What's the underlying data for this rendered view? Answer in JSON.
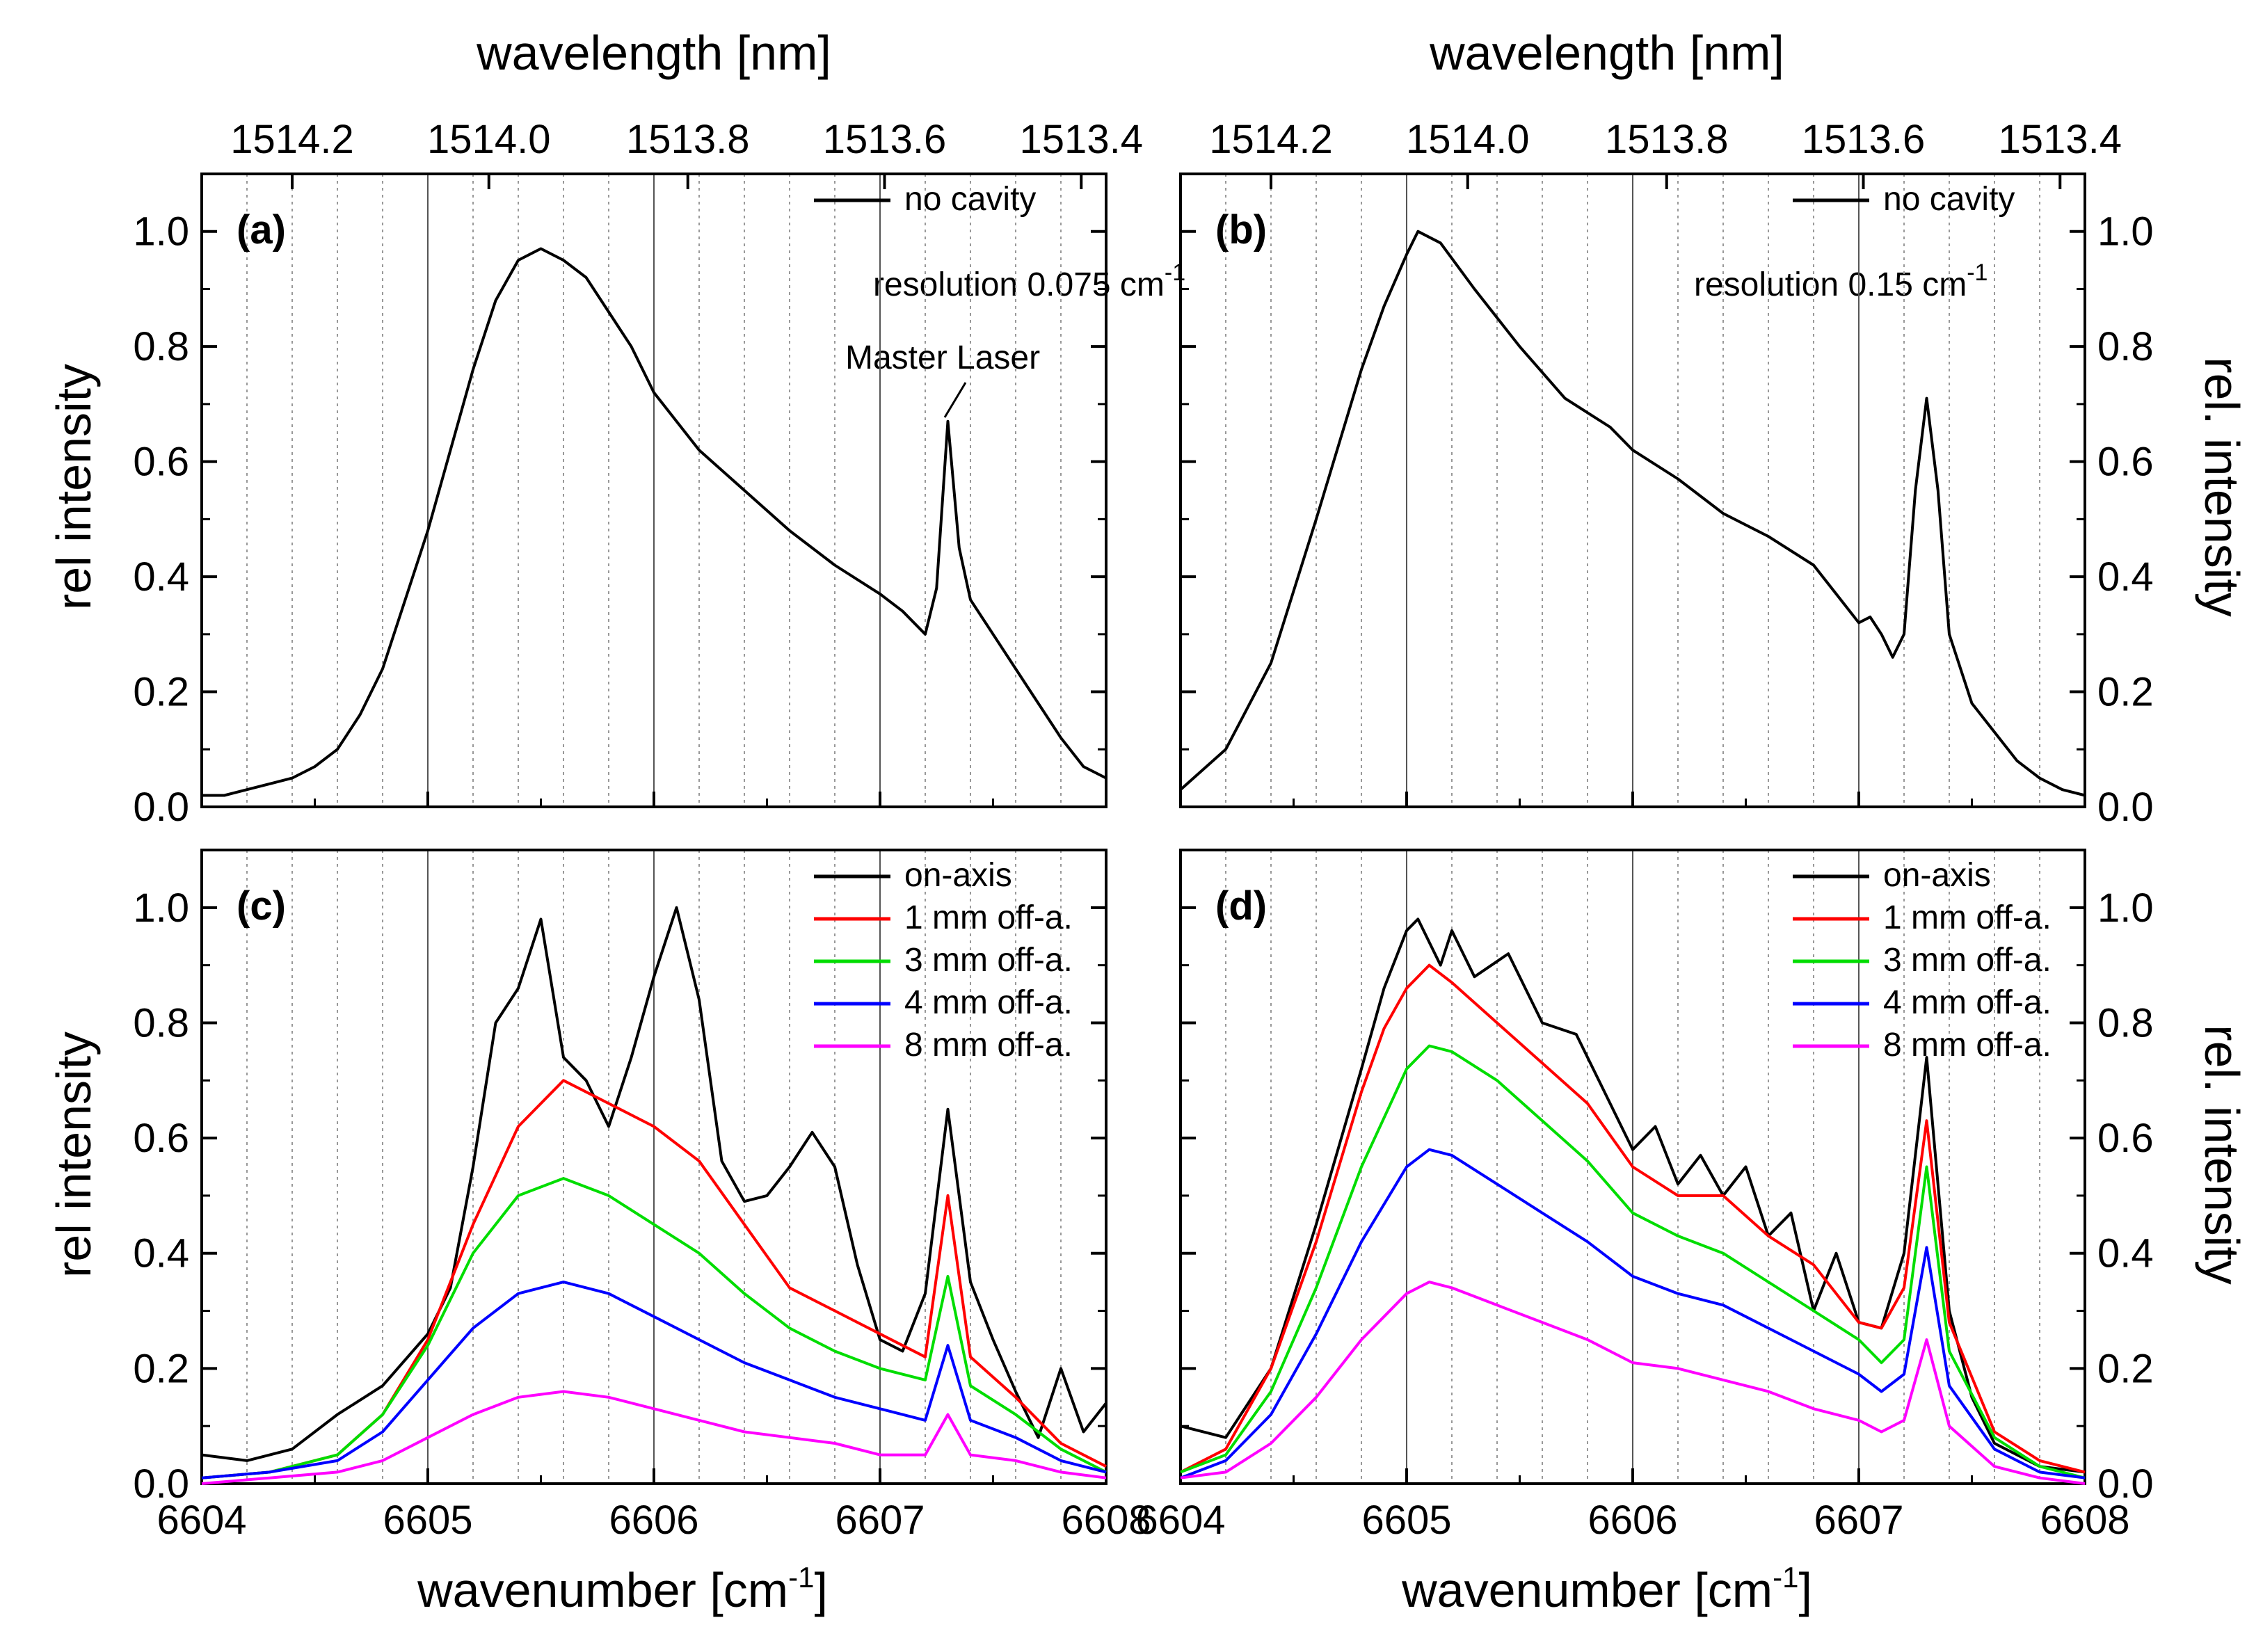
{
  "figure": {
    "top_axis_title": "wavelength [nm]",
    "bottom_axis_title_main": "wavenumber [cm",
    "bottom_axis_title_sup": "-1",
    "bottom_axis_title_end": "]",
    "left_ylabel_top": "rel intensity",
    "left_ylabel_bottom": "rel intensity",
    "right_ylabel_top": "rel. intensity",
    "right_ylabel_bottom": "rel. intensity",
    "resolution_a_main": "resolution 0.075 cm",
    "resolution_a_sup": "-1",
    "resolution_b_main": "resolution 0.15 cm",
    "resolution_b_sup": "-1",
    "annotation_master_laser": "Master Laser"
  },
  "colors": {
    "on-axis": "#000000",
    "1 mm off-a.": "#ff0000",
    "3 mm off-a.": "#00dd00",
    "4 mm off-a.": "#0000ff",
    "8 mm off-a.": "#ff00ff",
    "no cavity": "#000000"
  },
  "chart_data": [
    {
      "panel": "(a)",
      "type": "line",
      "xlabel": "wavenumber [cm-1]",
      "ylabel": "rel intensity",
      "top_xlabel": "wavelength [nm]",
      "top_ticks": [
        "1514.2",
        "1514.0",
        "1513.8",
        "1513.6",
        "1513.4"
      ],
      "top_tick_positions_cm": [
        6604.4,
        6605.27,
        6606.15,
        6607.02,
        6607.89
      ],
      "xlim": [
        6604,
        6608
      ],
      "ylim": [
        0,
        1.1
      ],
      "xticks": [
        6604,
        6605,
        6606,
        6607,
        6608
      ],
      "yticks": [
        "0.0",
        "0.2",
        "0.4",
        "0.6",
        "0.8",
        "1.0"
      ],
      "legend": [
        "no cavity"
      ],
      "legend_position": "top-right",
      "annotation": "resolution 0.075 cm-1",
      "series": [
        {
          "name": "no cavity",
          "x": [
            6604.0,
            6604.1,
            6604.2,
            6604.3,
            6604.4,
            6604.5,
            6604.6,
            6604.7,
            6604.8,
            6604.9,
            6605.0,
            6605.1,
            6605.2,
            6605.3,
            6605.4,
            6605.5,
            6605.6,
            6605.7,
            6605.8,
            6605.9,
            6606.0,
            6606.2,
            6606.4,
            6606.6,
            6606.8,
            6607.0,
            6607.1,
            6607.2,
            6607.25,
            6607.3,
            6607.35,
            6607.4,
            6607.5,
            6607.6,
            6607.7,
            6607.8,
            6607.9,
            6608.0
          ],
          "values": [
            0.02,
            0.02,
            0.03,
            0.04,
            0.05,
            0.07,
            0.1,
            0.16,
            0.24,
            0.36,
            0.48,
            0.62,
            0.76,
            0.88,
            0.95,
            0.97,
            0.95,
            0.92,
            0.86,
            0.8,
            0.72,
            0.62,
            0.55,
            0.48,
            0.42,
            0.37,
            0.34,
            0.3,
            0.38,
            0.67,
            0.45,
            0.36,
            0.3,
            0.24,
            0.18,
            0.12,
            0.07,
            0.05
          ]
        }
      ]
    },
    {
      "panel": "(b)",
      "type": "line",
      "xlabel": "wavenumber [cm-1]",
      "ylabel": "rel. intensity",
      "top_xlabel": "wavelength [nm]",
      "top_ticks": [
        "1514.2",
        "1514.0",
        "1513.8",
        "1513.6",
        "1513.4"
      ],
      "top_tick_positions_cm": [
        6604.4,
        6605.27,
        6606.15,
        6607.02,
        6607.89
      ],
      "xlim": [
        6604,
        6608
      ],
      "ylim": [
        0,
        1.1
      ],
      "xticks": [
        6604,
        6605,
        6606,
        6607,
        6608
      ],
      "yticks": [
        "0.0",
        "0.2",
        "0.4",
        "0.6",
        "0.8",
        "1.0"
      ],
      "legend": [
        "no cavity"
      ],
      "legend_position": "top-right",
      "annotation": "resolution 0.15 cm-1",
      "series": [
        {
          "name": "no cavity",
          "x": [
            6604.0,
            6604.2,
            6604.4,
            6604.6,
            6604.8,
            6604.9,
            6605.0,
            6605.05,
            6605.15,
            6605.3,
            6605.5,
            6605.7,
            6605.9,
            6606.0,
            6606.2,
            6606.4,
            6606.6,
            6606.8,
            6606.9,
            6607.0,
            6607.05,
            6607.1,
            6607.15,
            6607.2,
            6607.25,
            6607.3,
            6607.35,
            6607.4,
            6607.5,
            6607.6,
            6607.7,
            6607.8,
            6607.9,
            6608.0
          ],
          "values": [
            0.03,
            0.1,
            0.25,
            0.5,
            0.76,
            0.87,
            0.96,
            1.0,
            0.98,
            0.9,
            0.8,
            0.71,
            0.66,
            0.62,
            0.57,
            0.51,
            0.47,
            0.42,
            0.37,
            0.32,
            0.33,
            0.3,
            0.26,
            0.3,
            0.55,
            0.71,
            0.55,
            0.3,
            0.18,
            0.13,
            0.08,
            0.05,
            0.03,
            0.02
          ]
        }
      ]
    },
    {
      "panel": "(c)",
      "type": "line",
      "xlabel": "wavenumber [cm-1]",
      "ylabel": "rel intensity",
      "xlim": [
        6604,
        6608
      ],
      "ylim": [
        0,
        1.1
      ],
      "xticks": [
        6604,
        6605,
        6606,
        6607,
        6608
      ],
      "yticks": [
        "0.0",
        "0.2",
        "0.4",
        "0.6",
        "0.8",
        "1.0"
      ],
      "legend": [
        "on-axis",
        "1 mm off-a.",
        "3 mm off-a.",
        "4 mm off-a.",
        "8 mm off-a."
      ],
      "legend_position": "top-right",
      "series": [
        {
          "name": "on-axis",
          "x": [
            6604.0,
            6604.2,
            6604.4,
            6604.6,
            6604.8,
            6605.0,
            6605.1,
            6605.2,
            6605.3,
            6605.4,
            6605.5,
            6605.6,
            6605.7,
            6605.8,
            6605.9,
            6606.0,
            6606.1,
            6606.2,
            6606.3,
            6606.4,
            6606.5,
            6606.6,
            6606.7,
            6606.8,
            6606.9,
            6607.0,
            6607.1,
            6607.2,
            6607.3,
            6607.4,
            6607.5,
            6607.6,
            6607.7,
            6607.8,
            6607.9,
            6608.0
          ],
          "values": [
            0.05,
            0.04,
            0.06,
            0.12,
            0.17,
            0.26,
            0.34,
            0.55,
            0.8,
            0.86,
            0.98,
            0.74,
            0.7,
            0.62,
            0.74,
            0.88,
            1.0,
            0.84,
            0.56,
            0.49,
            0.5,
            0.55,
            0.61,
            0.55,
            0.38,
            0.25,
            0.23,
            0.33,
            0.65,
            0.35,
            0.25,
            0.16,
            0.08,
            0.2,
            0.09,
            0.14
          ]
        },
        {
          "name": "1 mm off-a.",
          "x": [
            6604.0,
            6604.3,
            6604.6,
            6604.8,
            6605.0,
            6605.2,
            6605.4,
            6605.6,
            6605.8,
            6606.0,
            6606.2,
            6606.4,
            6606.6,
            6606.8,
            6607.0,
            6607.2,
            6607.3,
            6607.4,
            6607.6,
            6607.8,
            6608.0
          ],
          "values": [
            0.01,
            0.02,
            0.05,
            0.12,
            0.25,
            0.45,
            0.62,
            0.7,
            0.66,
            0.62,
            0.56,
            0.45,
            0.34,
            0.3,
            0.26,
            0.22,
            0.5,
            0.22,
            0.15,
            0.07,
            0.03
          ]
        },
        {
          "name": "3 mm off-a.",
          "x": [
            6604.0,
            6604.3,
            6604.6,
            6604.8,
            6605.0,
            6605.2,
            6605.4,
            6605.6,
            6605.8,
            6606.0,
            6606.2,
            6606.4,
            6606.6,
            6606.8,
            6607.0,
            6607.2,
            6607.3,
            6607.4,
            6607.6,
            6607.8,
            6608.0
          ],
          "values": [
            0.01,
            0.02,
            0.05,
            0.12,
            0.24,
            0.4,
            0.5,
            0.53,
            0.5,
            0.45,
            0.4,
            0.33,
            0.27,
            0.23,
            0.2,
            0.18,
            0.36,
            0.17,
            0.12,
            0.06,
            0.02
          ]
        },
        {
          "name": "4 mm off-a.",
          "x": [
            6604.0,
            6604.3,
            6604.6,
            6604.8,
            6605.0,
            6605.2,
            6605.4,
            6605.6,
            6605.8,
            6606.0,
            6606.2,
            6606.4,
            6606.6,
            6606.8,
            6607.0,
            6607.2,
            6607.3,
            6607.4,
            6607.6,
            6607.8,
            6608.0
          ],
          "values": [
            0.01,
            0.02,
            0.04,
            0.09,
            0.18,
            0.27,
            0.33,
            0.35,
            0.33,
            0.29,
            0.25,
            0.21,
            0.18,
            0.15,
            0.13,
            0.11,
            0.24,
            0.11,
            0.08,
            0.04,
            0.02
          ]
        },
        {
          "name": "8 mm off-a.",
          "x": [
            6604.0,
            6604.3,
            6604.6,
            6604.8,
            6605.0,
            6605.2,
            6605.4,
            6605.6,
            6605.8,
            6606.0,
            6606.2,
            6606.4,
            6606.6,
            6606.8,
            6607.0,
            6607.2,
            6607.3,
            6607.4,
            6607.6,
            6607.8,
            6608.0
          ],
          "values": [
            0.0,
            0.01,
            0.02,
            0.04,
            0.08,
            0.12,
            0.15,
            0.16,
            0.15,
            0.13,
            0.11,
            0.09,
            0.08,
            0.07,
            0.05,
            0.05,
            0.12,
            0.05,
            0.04,
            0.02,
            0.01
          ]
        }
      ]
    },
    {
      "panel": "(d)",
      "type": "line",
      "xlabel": "wavenumber [cm-1]",
      "ylabel": "rel. intensity",
      "xlim": [
        6604,
        6608
      ],
      "ylim": [
        0,
        1.1
      ],
      "xticks": [
        6604,
        6605,
        6606,
        6607,
        6608
      ],
      "yticks": [
        "0.0",
        "0.2",
        "0.4",
        "0.6",
        "0.8",
        "1.0"
      ],
      "legend": [
        "on-axis",
        "1 mm off-a.",
        "3 mm off-a.",
        "4 mm off-a.",
        "8 mm off-a."
      ],
      "legend_position": "top-right",
      "series": [
        {
          "name": "on-axis",
          "x": [
            6604.0,
            6604.2,
            6604.4,
            6604.6,
            6604.8,
            6604.9,
            6605.0,
            6605.05,
            6605.15,
            6605.2,
            6605.3,
            6605.45,
            6605.6,
            6605.75,
            6605.85,
            6606.0,
            6606.1,
            6606.2,
            6606.3,
            6606.4,
            6606.5,
            6606.6,
            6606.7,
            6606.8,
            6606.9,
            6607.0,
            6607.1,
            6607.2,
            6607.3,
            6607.4,
            6607.5,
            6607.6,
            6607.8,
            6608.0
          ],
          "values": [
            0.1,
            0.08,
            0.2,
            0.45,
            0.72,
            0.86,
            0.96,
            0.98,
            0.9,
            0.96,
            0.88,
            0.92,
            0.8,
            0.78,
            0.7,
            0.58,
            0.62,
            0.52,
            0.57,
            0.5,
            0.55,
            0.43,
            0.47,
            0.3,
            0.4,
            0.28,
            0.27,
            0.4,
            0.74,
            0.3,
            0.15,
            0.07,
            0.03,
            0.02
          ]
        },
        {
          "name": "1 mm off-a.",
          "x": [
            6604.0,
            6604.2,
            6604.4,
            6604.6,
            6604.8,
            6604.9,
            6605.0,
            6605.1,
            6605.2,
            6605.4,
            6605.6,
            6605.8,
            6606.0,
            6606.2,
            6606.4,
            6606.6,
            6606.8,
            6607.0,
            6607.1,
            6607.2,
            6607.3,
            6607.4,
            6607.6,
            6607.8,
            6608.0
          ],
          "values": [
            0.02,
            0.06,
            0.2,
            0.42,
            0.68,
            0.79,
            0.86,
            0.9,
            0.87,
            0.8,
            0.73,
            0.66,
            0.55,
            0.5,
            0.5,
            0.43,
            0.38,
            0.28,
            0.27,
            0.34,
            0.63,
            0.28,
            0.09,
            0.04,
            0.02
          ]
        },
        {
          "name": "3 mm off-a.",
          "x": [
            6604.0,
            6604.2,
            6604.4,
            6604.6,
            6604.8,
            6605.0,
            6605.1,
            6605.2,
            6605.4,
            6605.6,
            6605.8,
            6606.0,
            6606.2,
            6606.4,
            6606.6,
            6606.8,
            6607.0,
            6607.1,
            6607.2,
            6607.3,
            6607.4,
            6607.6,
            6607.8,
            6608.0
          ],
          "values": [
            0.02,
            0.05,
            0.16,
            0.34,
            0.55,
            0.72,
            0.76,
            0.75,
            0.7,
            0.63,
            0.56,
            0.47,
            0.43,
            0.4,
            0.35,
            0.3,
            0.25,
            0.21,
            0.25,
            0.55,
            0.23,
            0.08,
            0.03,
            0.01
          ]
        },
        {
          "name": "4 mm off-a.",
          "x": [
            6604.0,
            6604.2,
            6604.4,
            6604.6,
            6604.8,
            6605.0,
            6605.1,
            6605.2,
            6605.4,
            6605.6,
            6605.8,
            6606.0,
            6606.2,
            6606.4,
            6606.6,
            6606.8,
            6607.0,
            6607.1,
            6607.2,
            6607.3,
            6607.4,
            6607.6,
            6607.8,
            6608.0
          ],
          "values": [
            0.01,
            0.04,
            0.12,
            0.26,
            0.42,
            0.55,
            0.58,
            0.57,
            0.52,
            0.47,
            0.42,
            0.36,
            0.33,
            0.31,
            0.27,
            0.23,
            0.19,
            0.16,
            0.19,
            0.41,
            0.17,
            0.06,
            0.02,
            0.01
          ]
        },
        {
          "name": "8 mm off-a.",
          "x": [
            6604.0,
            6604.2,
            6604.4,
            6604.6,
            6604.8,
            6605.0,
            6605.1,
            6605.2,
            6605.4,
            6605.6,
            6605.8,
            6606.0,
            6606.2,
            6606.4,
            6606.6,
            6606.8,
            6607.0,
            6607.1,
            6607.2,
            6607.3,
            6607.4,
            6607.6,
            6607.8,
            6608.0
          ],
          "values": [
            0.01,
            0.02,
            0.07,
            0.15,
            0.25,
            0.33,
            0.35,
            0.34,
            0.31,
            0.28,
            0.25,
            0.21,
            0.2,
            0.18,
            0.16,
            0.13,
            0.11,
            0.09,
            0.11,
            0.25,
            0.1,
            0.03,
            0.01,
            0.0
          ]
        }
      ]
    }
  ]
}
